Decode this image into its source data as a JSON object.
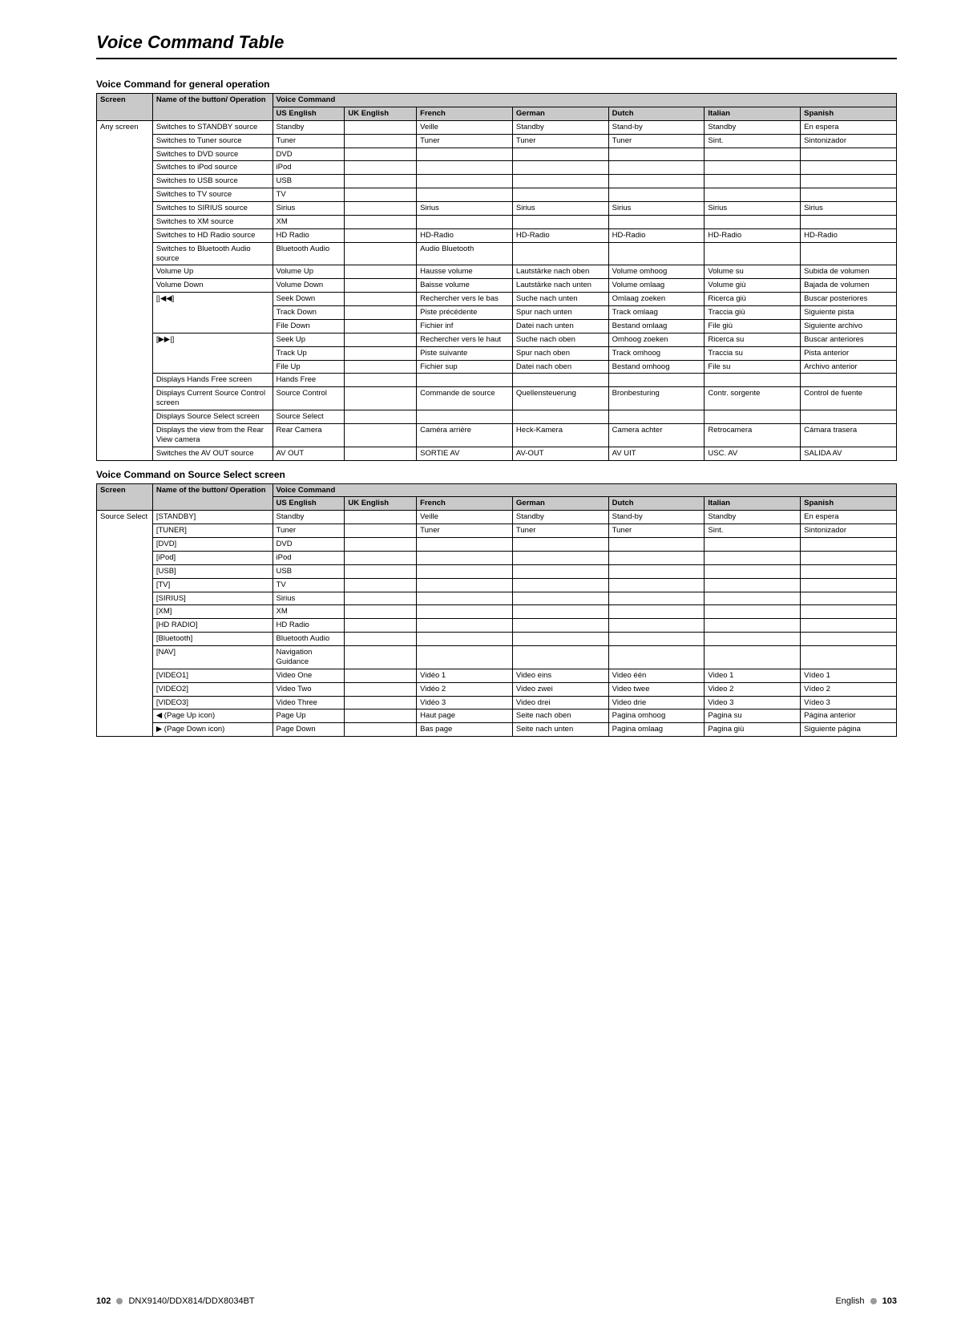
{
  "page": {
    "title": "Voice Command Table",
    "footer_left_page": "102",
    "footer_left_model": "DNX9140/DDX814/DDX8034BT",
    "footer_right_lang": "English",
    "footer_right_page": "103"
  },
  "section1": {
    "heading": "Voice Command for general operation",
    "columns": {
      "screen": "Screen",
      "operation": "Name of the button/\nOperation",
      "voice_command": "Voice Command",
      "us": "US English",
      "uk": "UK English",
      "fr": "French",
      "de": "German",
      "nl": "Dutch",
      "it": "Italian",
      "es": "Spanish"
    },
    "screen_label": "Any screen",
    "rows": [
      {
        "op": "Switches to STANDBY source",
        "us": "Standby",
        "uk": "",
        "fr": "Veille",
        "de": "Standby",
        "nl": "Stand-by",
        "it": "Standby",
        "es": "En espera"
      },
      {
        "op": "Switches to Tuner source",
        "us": "Tuner",
        "uk": "",
        "fr": "Tuner",
        "de": "Tuner",
        "nl": "Tuner",
        "it": "Sint.",
        "es": "Sintonizador"
      },
      {
        "op": "Switches to DVD source",
        "us": "DVD",
        "uk": "",
        "fr": "",
        "de": "",
        "nl": "",
        "it": "",
        "es": ""
      },
      {
        "op": "Switches to iPod source",
        "us": "iPod",
        "uk": "",
        "fr": "",
        "de": "",
        "nl": "",
        "it": "",
        "es": ""
      },
      {
        "op": "Switches to USB source",
        "us": "USB",
        "uk": "",
        "fr": "",
        "de": "",
        "nl": "",
        "it": "",
        "es": ""
      },
      {
        "op": "Switches to TV source",
        "us": "TV",
        "uk": "",
        "fr": "",
        "de": "",
        "nl": "",
        "it": "",
        "es": ""
      },
      {
        "op": "Switches to SIRIUS source",
        "us": "Sirius",
        "uk": "",
        "fr": "Sirius",
        "de": "Sirius",
        "nl": "Sirius",
        "it": "Sirius",
        "es": "Sirius"
      },
      {
        "op": "Switches to XM source",
        "us": "XM",
        "uk": "",
        "fr": "",
        "de": "",
        "nl": "",
        "it": "",
        "es": ""
      },
      {
        "op": "Switches to HD Radio source",
        "us": "HD Radio",
        "uk": "",
        "fr": "HD-Radio",
        "de": "HD-Radio",
        "nl": "HD-Radio",
        "it": "HD-Radio",
        "es": "HD-Radio"
      },
      {
        "op": "Switches to Bluetooth Audio source",
        "us": "Bluetooth Audio",
        "uk": "",
        "fr": "Audio Bluetooth",
        "de": "",
        "nl": "",
        "it": "",
        "es": ""
      },
      {
        "op": "Volume Up",
        "us": "Volume Up",
        "uk": "",
        "fr": "Hausse volume",
        "de": "Lautstärke nach oben",
        "nl": "Volume omhoog",
        "it": "Volume su",
        "es": "Subida de volumen"
      },
      {
        "op": "Volume Down",
        "us": "Volume Down",
        "uk": "",
        "fr": "Baisse volume",
        "de": "Lautstärke nach unten",
        "nl": "Volume omlaag",
        "it": "Volume giù",
        "es": "Bajada de volumen"
      },
      {
        "op": "[|◀◀]",
        "us": "Seek Down",
        "uk": "",
        "fr": "Rechercher vers le bas",
        "de": "Suche nach unten",
        "nl": "Omlaag zoeken",
        "it": "Ricerca giù",
        "es": "Buscar posteriores",
        "rowspan": 3
      },
      {
        "us": "Track Down",
        "uk": "",
        "fr": "Piste précédente",
        "de": "Spur nach unten",
        "nl": "Track omlaag",
        "it": "Traccia giù",
        "es": "Siguiente pista"
      },
      {
        "us": "File Down",
        "uk": "",
        "fr": "Fichier inf",
        "de": "Datei nach unten",
        "nl": "Bestand omlaag",
        "it": "File giù",
        "es": "Siguiente archivo"
      },
      {
        "op": "[▶▶|]",
        "us": "Seek Up",
        "uk": "",
        "fr": "Rechercher vers le haut",
        "de": "Suche nach oben",
        "nl": "Omhoog zoeken",
        "it": "Ricerca su",
        "es": "Buscar anteriores",
        "rowspan": 3
      },
      {
        "us": "Track Up",
        "uk": "",
        "fr": "Piste suivante",
        "de": "Spur nach oben",
        "nl": "Track omhoog",
        "it": "Traccia su",
        "es": "Pista anterior"
      },
      {
        "us": "File Up",
        "uk": "",
        "fr": "Fichier sup",
        "de": "Datei nach oben",
        "nl": "Bestand omhoog",
        "it": "File su",
        "es": "Archivo anterior"
      },
      {
        "op": "Displays Hands Free screen",
        "us": "Hands Free",
        "uk": "",
        "fr": "",
        "de": "",
        "nl": "",
        "it": "",
        "es": ""
      },
      {
        "op": "Displays Current Source Control screen",
        "us": "Source Control",
        "uk": "",
        "fr": "Commande de source",
        "de": "Quellensteuerung",
        "nl": "Bronbesturing",
        "it": "Contr. sorgente",
        "es": "Control de fuente"
      },
      {
        "op": "Displays Source Select screen",
        "us": "Source Select",
        "uk": "",
        "fr": "",
        "de": "",
        "nl": "",
        "it": "",
        "es": ""
      },
      {
        "op": "Displays the view from the Rear View camera",
        "us": "Rear Camera",
        "uk": "",
        "fr": "Caméra arrière",
        "de": "Heck-Kamera",
        "nl": "Camera achter",
        "it": "Retrocamera",
        "es": "Cámara trasera"
      },
      {
        "op": "Switches the AV OUT source",
        "us": "AV OUT",
        "uk": "",
        "fr": "SORTIE AV",
        "de": "AV-OUT",
        "nl": "AV UIT",
        "it": "USC. AV",
        "es": "SALIDA AV"
      }
    ]
  },
  "section2": {
    "heading": "Voice Command on Source Select screen",
    "screen_label": "Source Select",
    "rows": [
      {
        "op": "[STANDBY]",
        "us": "Standby",
        "uk": "",
        "fr": "Veille",
        "de": "Standby",
        "nl": "Stand-by",
        "it": "Standby",
        "es": "En espera"
      },
      {
        "op": "[TUNER]",
        "us": "Tuner",
        "uk": "",
        "fr": "Tuner",
        "de": "Tuner",
        "nl": "Tuner",
        "it": "Sint.",
        "es": "Sintonizador"
      },
      {
        "op": "[DVD]",
        "us": "DVD",
        "uk": "",
        "fr": "",
        "de": "",
        "nl": "",
        "it": "",
        "es": ""
      },
      {
        "op": "[iPod]",
        "us": "iPod",
        "uk": "",
        "fr": "",
        "de": "",
        "nl": "",
        "it": "",
        "es": ""
      },
      {
        "op": "[USB]",
        "us": "USB",
        "uk": "",
        "fr": "",
        "de": "",
        "nl": "",
        "it": "",
        "es": ""
      },
      {
        "op": "[TV]",
        "us": "TV",
        "uk": "",
        "fr": "",
        "de": "",
        "nl": "",
        "it": "",
        "es": ""
      },
      {
        "op": "[SIRIUS]",
        "us": "Sirius",
        "uk": "",
        "fr": "",
        "de": "",
        "nl": "",
        "it": "",
        "es": ""
      },
      {
        "op": "[XM]",
        "us": "XM",
        "uk": "",
        "fr": "",
        "de": "",
        "nl": "",
        "it": "",
        "es": ""
      },
      {
        "op": "[HD RADIO]",
        "us": "HD Radio",
        "uk": "",
        "fr": "",
        "de": "",
        "nl": "",
        "it": "",
        "es": ""
      },
      {
        "op": "[Bluetooth]",
        "us": "Bluetooth Audio",
        "uk": "",
        "fr": "",
        "de": "",
        "nl": "",
        "it": "",
        "es": ""
      },
      {
        "op": "[NAV]",
        "us": "Navigation Guidance",
        "uk": "",
        "fr": "",
        "de": "",
        "nl": "",
        "it": "",
        "es": ""
      },
      {
        "op": "[VIDEO1]",
        "us": "Video One",
        "uk": "",
        "fr": "Vidéo 1",
        "de": "Video eins",
        "nl": "Video één",
        "it": "Video 1",
        "es": "Vídeo 1"
      },
      {
        "op": "[VIDEO2]",
        "us": "Video Two",
        "uk": "",
        "fr": "Vidéo 2",
        "de": "Video zwei",
        "nl": "Video twee",
        "it": "Video 2",
        "es": "Vídeo 2"
      },
      {
        "op": "[VIDEO3]",
        "us": "Video Three",
        "uk": "",
        "fr": "Vidéo 3",
        "de": "Video drei",
        "nl": "Video drie",
        "it": "Video 3",
        "es": "Vídeo 3"
      },
      {
        "op": "◀ (Page Up icon)",
        "us": "Page Up",
        "uk": "",
        "fr": "Haut page",
        "de": "Seite nach oben",
        "nl": "Pagina omhoog",
        "it": "Pagina su",
        "es": "Página anterior"
      },
      {
        "op": "▶ (Page Down icon)",
        "us": "Page Down",
        "uk": "",
        "fr": "Bas page",
        "de": "Seite nach unten",
        "nl": "Pagina omlaag",
        "it": "Pagina giù",
        "es": "Siguiente página"
      }
    ]
  }
}
